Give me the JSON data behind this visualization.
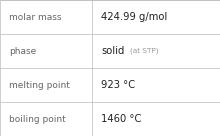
{
  "rows": [
    {
      "label": "molar mass",
      "value": "424.99 g/mol",
      "value2": null
    },
    {
      "label": "phase",
      "value": "solid",
      "value2": "(at STP)"
    },
    {
      "label": "melting point",
      "value": "923 °C",
      "value2": null
    },
    {
      "label": "boiling point",
      "value": "1460 °C",
      "value2": null
    }
  ],
  "background_color": "#ffffff",
  "border_color": "#bbbbbb",
  "label_color": "#666666",
  "value_color": "#222222",
  "value2_color": "#999999",
  "label_fontsize": 6.5,
  "value_fontsize": 7.2,
  "value2_fontsize": 5.2,
  "col_split": 0.42,
  "fig_width": 2.2,
  "fig_height": 1.36,
  "dpi": 100
}
